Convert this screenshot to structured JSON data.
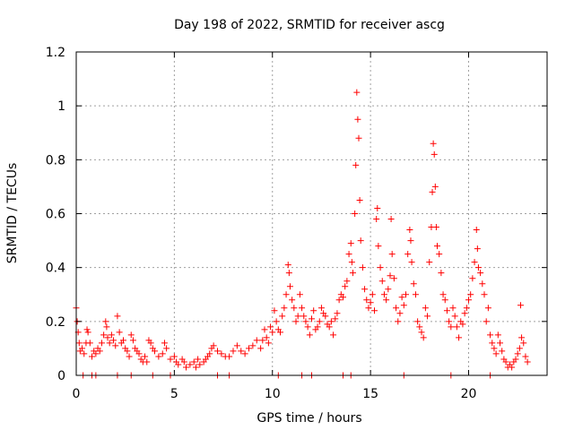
{
  "chart_data": {
    "type": "scatter",
    "title": "Day 198 of 2022, SRMTID for receiver ascg",
    "xlabel": "GPS time / hours",
    "ylabel": "SRMTID / TECUs",
    "xlim": [
      0,
      24
    ],
    "ylim": [
      0,
      1.2
    ],
    "xticks": [
      0,
      5,
      10,
      15,
      20
    ],
    "xtick_labels": [
      "0",
      "5",
      "10",
      "15",
      "20"
    ],
    "yticks": [
      0,
      0.2,
      0.4,
      0.6,
      0.8,
      1.0,
      1.2
    ],
    "ytick_labels": [
      "0",
      "0.2",
      "0.4",
      "0.6",
      "0.8",
      "1",
      "1.2"
    ],
    "grid": true,
    "marker": "+",
    "color": "#ff0000",
    "series": [
      {
        "name": "SRMTID",
        "points": [
          [
            0.0,
            0.25
          ],
          [
            0.05,
            0.2
          ],
          [
            0.1,
            0.16
          ],
          [
            0.15,
            0.12
          ],
          [
            0.2,
            0.09
          ],
          [
            0.3,
            0.1
          ],
          [
            0.4,
            0.08
          ],
          [
            0.5,
            0.12
          ],
          [
            0.55,
            0.17
          ],
          [
            0.6,
            0.16
          ],
          [
            0.7,
            0.12
          ],
          [
            0.8,
            0.07
          ],
          [
            0.9,
            0.09
          ],
          [
            1.0,
            0.08
          ],
          [
            1.1,
            0.1
          ],
          [
            1.2,
            0.09
          ],
          [
            1.3,
            0.12
          ],
          [
            1.4,
            0.15
          ],
          [
            1.5,
            0.2
          ],
          [
            1.55,
            0.18
          ],
          [
            1.6,
            0.14
          ],
          [
            1.7,
            0.12
          ],
          [
            1.8,
            0.15
          ],
          [
            1.9,
            0.13
          ],
          [
            2.0,
            0.11
          ],
          [
            2.1,
            0.22
          ],
          [
            2.2,
            0.16
          ],
          [
            2.3,
            0.12
          ],
          [
            2.4,
            0.13
          ],
          [
            2.5,
            0.1
          ],
          [
            2.6,
            0.09
          ],
          [
            2.7,
            0.07
          ],
          [
            2.8,
            0.15
          ],
          [
            2.9,
            0.13
          ],
          [
            3.0,
            0.1
          ],
          [
            3.1,
            0.09
          ],
          [
            3.2,
            0.08
          ],
          [
            3.3,
            0.06
          ],
          [
            3.4,
            0.05
          ],
          [
            3.5,
            0.07
          ],
          [
            3.6,
            0.05
          ],
          [
            3.7,
            0.13
          ],
          [
            3.8,
            0.12
          ],
          [
            3.9,
            0.1
          ],
          [
            4.0,
            0.09
          ],
          [
            4.2,
            0.07
          ],
          [
            4.4,
            0.08
          ],
          [
            4.5,
            0.12
          ],
          [
            4.6,
            0.1
          ],
          [
            4.8,
            0.06
          ],
          [
            5.0,
            0.07
          ],
          [
            5.1,
            0.05
          ],
          [
            5.2,
            0.04
          ],
          [
            5.4,
            0.06
          ],
          [
            5.5,
            0.05
          ],
          [
            5.6,
            0.03
          ],
          [
            5.8,
            0.04
          ],
          [
            6.0,
            0.05
          ],
          [
            6.1,
            0.03
          ],
          [
            6.2,
            0.06
          ],
          [
            6.3,
            0.04
          ],
          [
            6.5,
            0.05
          ],
          [
            6.6,
            0.06
          ],
          [
            6.7,
            0.07
          ],
          [
            6.8,
            0.08
          ],
          [
            6.9,
            0.1
          ],
          [
            7.0,
            0.11
          ],
          [
            7.2,
            0.09
          ],
          [
            7.4,
            0.08
          ],
          [
            7.6,
            0.07
          ],
          [
            7.8,
            0.07
          ],
          [
            8.0,
            0.09
          ],
          [
            8.2,
            0.11
          ],
          [
            8.4,
            0.09
          ],
          [
            8.6,
            0.08
          ],
          [
            8.8,
            0.1
          ],
          [
            9.0,
            0.11
          ],
          [
            9.2,
            0.13
          ],
          [
            9.4,
            0.1
          ],
          [
            9.5,
            0.13
          ],
          [
            9.6,
            0.17
          ],
          [
            9.7,
            0.14
          ],
          [
            9.8,
            0.12
          ],
          [
            9.9,
            0.18
          ],
          [
            10.0,
            0.16
          ],
          [
            10.1,
            0.24
          ],
          [
            10.2,
            0.2
          ],
          [
            10.3,
            0.17
          ],
          [
            10.4,
            0.16
          ],
          [
            10.5,
            0.22
          ],
          [
            10.6,
            0.25
          ],
          [
            10.7,
            0.3
          ],
          [
            10.8,
            0.41
          ],
          [
            10.85,
            0.38
          ],
          [
            10.9,
            0.33
          ],
          [
            11.0,
            0.28
          ],
          [
            11.1,
            0.25
          ],
          [
            11.2,
            0.2
          ],
          [
            11.3,
            0.22
          ],
          [
            11.4,
            0.3
          ],
          [
            11.5,
            0.25
          ],
          [
            11.6,
            0.22
          ],
          [
            11.7,
            0.2
          ],
          [
            11.8,
            0.18
          ],
          [
            11.9,
            0.15
          ],
          [
            12.0,
            0.21
          ],
          [
            12.1,
            0.24
          ],
          [
            12.2,
            0.17
          ],
          [
            12.3,
            0.18
          ],
          [
            12.4,
            0.2
          ],
          [
            12.5,
            0.25
          ],
          [
            12.6,
            0.23
          ],
          [
            12.7,
            0.22
          ],
          [
            12.8,
            0.19
          ],
          [
            12.9,
            0.18
          ],
          [
            13.0,
            0.2
          ],
          [
            13.1,
            0.15
          ],
          [
            13.2,
            0.21
          ],
          [
            13.3,
            0.23
          ],
          [
            13.4,
            0.28
          ],
          [
            13.5,
            0.3
          ],
          [
            13.6,
            0.29
          ],
          [
            13.7,
            0.33
          ],
          [
            13.8,
            0.35
          ],
          [
            13.9,
            0.45
          ],
          [
            14.0,
            0.49
          ],
          [
            14.05,
            0.42
          ],
          [
            14.1,
            0.38
          ],
          [
            14.2,
            0.6
          ],
          [
            14.25,
            0.78
          ],
          [
            14.3,
            1.05
          ],
          [
            14.35,
            0.95
          ],
          [
            14.4,
            0.88
          ],
          [
            14.45,
            0.65
          ],
          [
            14.5,
            0.5
          ],
          [
            14.6,
            0.4
          ],
          [
            14.7,
            0.32
          ],
          [
            14.8,
            0.28
          ],
          [
            14.9,
            0.25
          ],
          [
            15.0,
            0.27
          ],
          [
            15.1,
            0.3
          ],
          [
            15.2,
            0.24
          ],
          [
            15.3,
            0.58
          ],
          [
            15.35,
            0.62
          ],
          [
            15.4,
            0.48
          ],
          [
            15.5,
            0.4
          ],
          [
            15.6,
            0.35
          ],
          [
            15.7,
            0.3
          ],
          [
            15.8,
            0.28
          ],
          [
            15.9,
            0.32
          ],
          [
            16.0,
            0.37
          ],
          [
            16.05,
            0.58
          ],
          [
            16.1,
            0.45
          ],
          [
            16.2,
            0.36
          ],
          [
            16.3,
            0.25
          ],
          [
            16.4,
            0.2
          ],
          [
            16.5,
            0.23
          ],
          [
            16.6,
            0.29
          ],
          [
            16.7,
            0.26
          ],
          [
            16.8,
            0.3
          ],
          [
            16.9,
            0.45
          ],
          [
            17.0,
            0.54
          ],
          [
            17.05,
            0.5
          ],
          [
            17.1,
            0.42
          ],
          [
            17.2,
            0.34
          ],
          [
            17.3,
            0.3
          ],
          [
            17.4,
            0.2
          ],
          [
            17.5,
            0.18
          ],
          [
            17.6,
            0.16
          ],
          [
            17.7,
            0.14
          ],
          [
            17.8,
            0.25
          ],
          [
            17.9,
            0.22
          ],
          [
            18.0,
            0.42
          ],
          [
            18.1,
            0.55
          ],
          [
            18.15,
            0.68
          ],
          [
            18.2,
            0.86
          ],
          [
            18.25,
            0.82
          ],
          [
            18.3,
            0.7
          ],
          [
            18.35,
            0.55
          ],
          [
            18.4,
            0.48
          ],
          [
            18.5,
            0.45
          ],
          [
            18.6,
            0.38
          ],
          [
            18.7,
            0.3
          ],
          [
            18.8,
            0.28
          ],
          [
            18.9,
            0.24
          ],
          [
            19.0,
            0.2
          ],
          [
            19.1,
            0.18
          ],
          [
            19.2,
            0.25
          ],
          [
            19.3,
            0.22
          ],
          [
            19.4,
            0.18
          ],
          [
            19.5,
            0.14
          ],
          [
            19.6,
            0.2
          ],
          [
            19.7,
            0.19
          ],
          [
            19.8,
            0.23
          ],
          [
            19.9,
            0.25
          ],
          [
            20.0,
            0.28
          ],
          [
            20.1,
            0.3
          ],
          [
            20.2,
            0.36
          ],
          [
            20.3,
            0.42
          ],
          [
            20.4,
            0.54
          ],
          [
            20.45,
            0.47
          ],
          [
            20.5,
            0.4
          ],
          [
            20.6,
            0.38
          ],
          [
            20.7,
            0.34
          ],
          [
            20.8,
            0.3
          ],
          [
            20.9,
            0.2
          ],
          [
            21.0,
            0.25
          ],
          [
            21.1,
            0.15
          ],
          [
            21.2,
            0.12
          ],
          [
            21.3,
            0.1
          ],
          [
            21.4,
            0.08
          ],
          [
            21.5,
            0.15
          ],
          [
            21.6,
            0.12
          ],
          [
            21.7,
            0.09
          ],
          [
            21.8,
            0.06
          ],
          [
            21.9,
            0.05
          ],
          [
            22.0,
            0.03
          ],
          [
            22.1,
            0.04
          ],
          [
            22.2,
            0.03
          ],
          [
            22.3,
            0.05
          ],
          [
            22.4,
            0.06
          ],
          [
            22.5,
            0.08
          ],
          [
            22.6,
            0.1
          ],
          [
            22.7,
            0.14
          ],
          [
            22.8,
            0.12
          ],
          [
            22.9,
            0.07
          ],
          [
            23.0,
            0.05
          ],
          [
            22.65,
            0.26
          ],
          [
            0.35,
            0.0
          ],
          [
            0.8,
            0.0
          ],
          [
            1.0,
            0.0
          ],
          [
            2.1,
            0.0
          ],
          [
            2.8,
            0.0
          ],
          [
            3.9,
            0.0
          ],
          [
            4.8,
            0.0
          ],
          [
            7.2,
            0.0
          ],
          [
            7.8,
            0.0
          ],
          [
            10.3,
            0.0
          ],
          [
            11.5,
            0.0
          ],
          [
            12.0,
            0.0
          ],
          [
            13.6,
            0.0
          ],
          [
            14.0,
            0.0
          ],
          [
            16.7,
            0.0
          ],
          [
            19.1,
            0.0
          ],
          [
            21.1,
            0.0
          ]
        ]
      }
    ]
  }
}
